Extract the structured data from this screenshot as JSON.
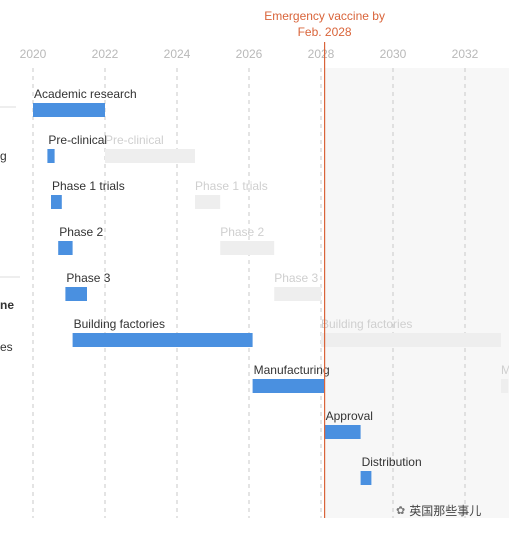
{
  "chart_data": {
    "type": "gantt",
    "x_axis": {
      "min": 2019.8,
      "max": 2033.2,
      "ticks": [
        2020,
        2022,
        2024,
        2026,
        2028,
        2030,
        2032
      ]
    },
    "annotation": {
      "date": 2028.1,
      "lines": [
        "Emergency vaccine by",
        "Feb. 2028"
      ]
    },
    "left_cut_labels": [
      "g",
      "ne",
      "es"
    ],
    "tasks": [
      {
        "name": "Academic research",
        "start": 2020.0,
        "end": 2022.0
      },
      {
        "name": "Pre-clinical",
        "start": 2020.4,
        "end": 2020.6,
        "ghost_start": 2022.0,
        "ghost_end": 2024.5
      },
      {
        "name": "Phase 1 trials",
        "start": 2020.5,
        "end": 2020.8,
        "ghost_start": 2024.5,
        "ghost_end": 2025.2
      },
      {
        "name": "Phase 2",
        "start": 2020.7,
        "end": 2021.1,
        "ghost_start": 2025.2,
        "ghost_end": 2026.7
      },
      {
        "name": "Phase 3",
        "start": 2020.9,
        "end": 2021.5,
        "ghost_start": 2026.7,
        "ghost_end": 2028.0
      },
      {
        "name": "Building factories",
        "start": 2021.1,
        "end": 2026.1,
        "ghost_start": 2028.0,
        "ghost_end": 2033.0
      },
      {
        "name": "Manufacturing",
        "start": 2026.1,
        "end": 2028.1,
        "ghost_start": 2033.0,
        "ghost_end": 2033.2,
        "ghost_label": "M"
      },
      {
        "name": "Approval",
        "start": 2028.1,
        "end": 2029.1
      },
      {
        "name": "Distribution",
        "start": 2029.1,
        "end": 2029.4
      }
    ]
  },
  "watermark": {
    "text": "英国那些事儿",
    "icon": "wechat-icon"
  },
  "colors": {
    "bar": "#4a90e0",
    "ghost": "#eeeeee",
    "annotation": "#d9643a",
    "grid": "#c8c8c8",
    "future_band": "#f7f7f7"
  }
}
